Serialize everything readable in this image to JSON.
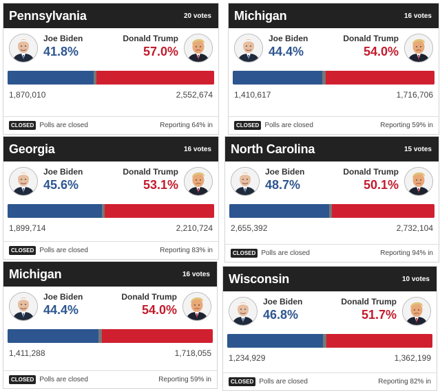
{
  "colors": {
    "header_bg": "#222222",
    "biden_blue": "#2d5690",
    "trump_red": "#c11b2c",
    "bar_red": "#d02030",
    "remaining_gray": "#777777"
  },
  "icons": {
    "biden_avatar": "joe-biden-portrait",
    "trump_avatar": "donald-trump-portrait"
  },
  "closed_badge": "CLOSED",
  "polls_status": "Polls are closed",
  "cards": [
    {
      "state": "Pennsylvania",
      "votes": "20 votes",
      "biden": {
        "name": "Joe Biden",
        "pct": "41.8%",
        "count": "1,870,010",
        "share": 41.8
      },
      "trump": {
        "name": "Donald Trump",
        "pct": "57.0%",
        "count": "2,552,674",
        "share": 57.0
      },
      "reporting": "Reporting 64% in"
    },
    {
      "state": "Michigan",
      "votes": "16 votes",
      "biden": {
        "name": "Joe Biden",
        "pct": "44.4%",
        "count": "1,410,617",
        "share": 44.4
      },
      "trump": {
        "name": "Donald Trump",
        "pct": "54.0%",
        "count": "1,716,706",
        "share": 54.0
      },
      "reporting": "Reporting 59% in"
    },
    {
      "state": "Georgia",
      "votes": "16 votes",
      "biden": {
        "name": "Joe Biden",
        "pct": "45.6%",
        "count": "1,899,714",
        "share": 45.6
      },
      "trump": {
        "name": "Donald Trump",
        "pct": "53.1%",
        "count": "2,210,724",
        "share": 53.1
      },
      "reporting": "Reporting 83% in"
    },
    {
      "state": "North Carolina",
      "votes": "15 votes",
      "biden": {
        "name": "Joe Biden",
        "pct": "48.7%",
        "count": "2,655,392",
        "share": 48.7
      },
      "trump": {
        "name": "Donald Trump",
        "pct": "50.1%",
        "count": "2,732,104",
        "share": 50.1
      },
      "reporting": "Reporting 94% in"
    },
    {
      "state": "Michigan",
      "votes": "16 votes",
      "biden": {
        "name": "Joe Biden",
        "pct": "44.4%",
        "count": "1,411,288",
        "share": 44.4
      },
      "trump": {
        "name": "Donald Trump",
        "pct": "54.0%",
        "count": "1,718,055",
        "share": 54.0
      },
      "reporting": "Reporting 59% in"
    },
    {
      "state": "Wisconsin",
      "votes": "10 votes",
      "biden": {
        "name": "Joe Biden",
        "pct": "46.8%",
        "count": "1,234,929",
        "share": 46.8
      },
      "trump": {
        "name": "Donald Trump",
        "pct": "51.7%",
        "count": "1,362,199",
        "share": 51.7
      },
      "reporting": "Reporting 82% in"
    }
  ]
}
